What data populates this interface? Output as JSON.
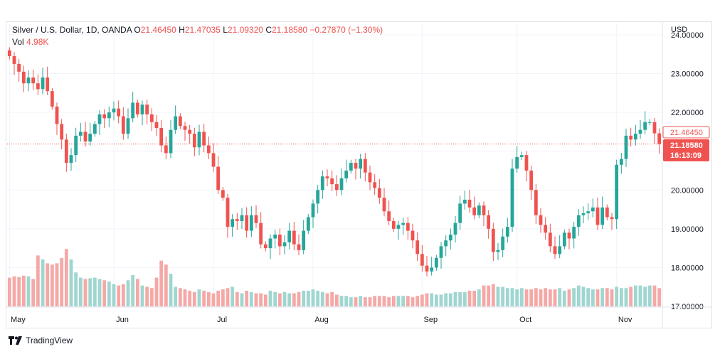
{
  "legend": {
    "symbol": "Silver / U.S. Dollar, 1D, OANDA",
    "open_label": "O",
    "open": "21.46450",
    "high_label": "H",
    "high": "21.47035",
    "low_label": "L",
    "low": "21.09320",
    "close_label": "C",
    "close": "21.18580",
    "change": "−0.27870 (−1.30%)",
    "vol_label": "Vol",
    "vol": "4.98K"
  },
  "footer": {
    "brand": "TradingView"
  },
  "colors": {
    "up": "#26a69a",
    "down": "#ef5350",
    "up_vol": "#9fd6d0",
    "down_vol": "#f5a8a6",
    "grid": "#f0f3fa",
    "text": "#131722"
  },
  "chart_data": {
    "type": "candlestick",
    "title": "Silver / U.S. Dollar, 1D, OANDA",
    "currency_label": "USD",
    "y_ticks": [
      "17.00000",
      "18.00000",
      "19.00000",
      "20.00000",
      "21.00000",
      "22.00000",
      "23.00000",
      "24.00000"
    ],
    "ylim": [
      17.0,
      24.0
    ],
    "x_labels": [
      {
        "label": "May",
        "bar": 0
      },
      {
        "label": "Jun",
        "bar": 22
      },
      {
        "label": "Jul",
        "bar": 43
      },
      {
        "label": "Aug",
        "bar": 64
      },
      {
        "label": "Sep",
        "bar": 87
      },
      {
        "label": "Oct",
        "bar": 107
      },
      {
        "label": "Nov",
        "bar": 128
      }
    ],
    "current_open_label": "21.46450",
    "current_price_label": "21.18580",
    "countdown_label": "16:13:09",
    "current_open": 21.4645,
    "current_price": 21.1858,
    "volume_max": 5.5,
    "closes": [
      23.45,
      23.25,
      23.05,
      22.75,
      22.9,
      22.75,
      22.6,
      22.9,
      22.55,
      22.15,
      21.7,
      21.3,
      20.7,
      20.9,
      21.4,
      21.5,
      21.25,
      21.45,
      21.7,
      21.95,
      21.85,
      22.0,
      22.1,
      21.9,
      21.45,
      21.85,
      22.25,
      21.95,
      22.2,
      21.95,
      21.75,
      21.6,
      21.15,
      20.95,
      21.55,
      21.9,
      21.65,
      21.55,
      21.45,
      21.1,
      21.5,
      21.15,
      20.95,
      20.6,
      20.0,
      19.8,
      19.05,
      19.25,
      19.2,
      19.35,
      18.95,
      19.35,
      19.15,
      18.6,
      18.5,
      18.75,
      18.85,
      18.55,
      18.65,
      18.95,
      18.6,
      18.45,
      18.95,
      19.3,
      19.65,
      20.0,
      20.35,
      20.3,
      20.15,
      20.0,
      20.3,
      20.5,
      20.7,
      20.55,
      20.8,
      20.45,
      20.2,
      20.05,
      19.8,
      19.45,
      19.2,
      19.0,
      19.1,
      19.15,
      18.95,
      18.7,
      18.35,
      18.05,
      17.9,
      18.0,
      18.25,
      18.55,
      18.7,
      18.85,
      19.15,
      19.65,
      19.75,
      19.55,
      19.35,
      19.6,
      19.35,
      19.0,
      18.4,
      18.45,
      18.8,
      19.05,
      20.55,
      20.85,
      20.9,
      20.5,
      20.0,
      19.35,
      19.1,
      18.9,
      18.55,
      18.35,
      18.55,
      18.9,
      18.75,
      19.05,
      19.35,
      19.4,
      19.45,
      19.55,
      19.1,
      19.55,
      19.3,
      19.25,
      20.65,
      20.8,
      21.4,
      21.3,
      21.45,
      21.55,
      21.75,
      21.75,
      21.46,
      21.19
    ],
    "volumes": [
      2.2,
      2.3,
      2.25,
      2.35,
      2.3,
      2.1,
      3.9,
      3.6,
      3.3,
      3.2,
      3.3,
      3.7,
      4.4,
      3.6,
      2.6,
      2.2,
      2.1,
      2.15,
      2.2,
      2.1,
      2.0,
      1.9,
      1.7,
      1.6,
      1.7,
      2.0,
      2.4,
      2.1,
      1.6,
      1.5,
      1.4,
      2.2,
      3.5,
      3.2,
      2.5,
      1.5,
      1.4,
      1.3,
      1.2,
      1.1,
      1.3,
      1.2,
      1.1,
      1.0,
      1.2,
      1.3,
      1.4,
      1.5,
      1.1,
      1.0,
      1.2,
      1.1,
      1.0,
      1.0,
      0.9,
      1.2,
      1.1,
      1.0,
      1.1,
      1.0,
      1.0,
      1.1,
      1.2,
      1.2,
      1.3,
      1.2,
      1.1,
      1.0,
      1.1,
      0.9,
      0.8,
      0.8,
      0.7,
      0.7,
      0.8,
      0.7,
      0.7,
      0.8,
      0.8,
      0.8,
      0.7,
      0.8,
      0.8,
      0.8,
      0.8,
      0.7,
      0.8,
      0.9,
      1.0,
      1.0,
      0.9,
      0.9,
      1.0,
      1.0,
      1.1,
      1.1,
      1.1,
      1.2,
      1.2,
      1.3,
      1.6,
      1.6,
      1.7,
      1.5,
      1.5,
      1.4,
      1.4,
      1.3,
      1.4,
      1.3,
      1.3,
      1.4,
      1.3,
      1.4,
      1.3,
      1.3,
      1.4,
      1.2,
      1.3,
      1.4,
      1.6,
      1.5,
      1.4,
      1.3,
      1.3,
      1.4,
      1.4,
      1.3,
      1.5,
      1.4,
      1.4,
      1.5,
      1.6,
      1.6,
      1.5,
      1.6,
      1.6,
      1.4
    ]
  }
}
